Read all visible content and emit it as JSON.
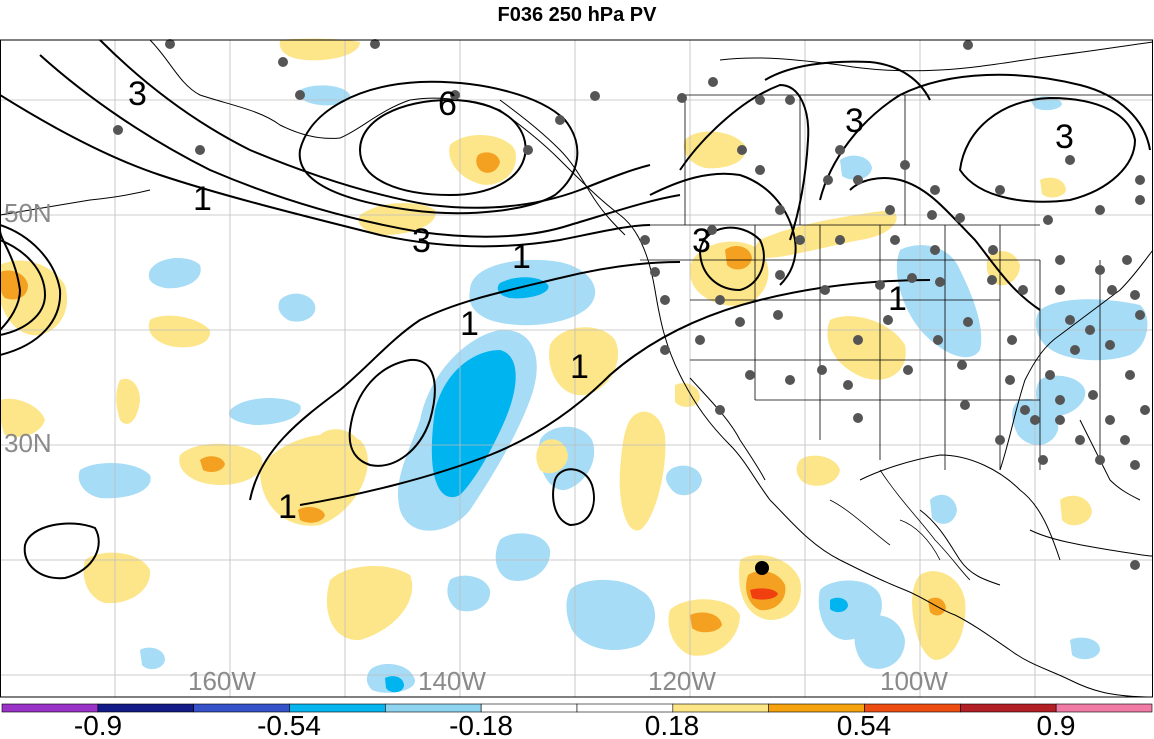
{
  "title": "F036 250 hPa PV",
  "colors": {
    "neg_strong": "#00b4f0",
    "neg_weak": "#a6dcf6",
    "pos_weak": "#fde68a",
    "pos_mid": "#f4a020",
    "pos_strong": "#f04010",
    "land_line": "#000000",
    "grid": "#bdbdbd",
    "station_dot": "#555555"
  },
  "latitude_labels": [
    "50N",
    "30N"
  ],
  "longitude_labels": [
    "160W",
    "140W",
    "120W",
    "100W"
  ],
  "contour_labels": [
    "3",
    "6",
    "3",
    "3",
    "1",
    "3",
    "1",
    "3",
    "1",
    "1",
    "1",
    "1"
  ],
  "colorbar": {
    "colors": [
      "#9a34c8",
      "#121a86",
      "#3552c8",
      "#06b4ee",
      "#8ed3f0",
      "#ffffff",
      "#ffffff",
      "#fbe587",
      "#f6a20f",
      "#ee4d12",
      "#b21f25",
      "#f07ca6"
    ],
    "labels": [
      "-0.9",
      "-0.54",
      "-0.18",
      "0.18",
      "0.54",
      "0.9"
    ]
  }
}
